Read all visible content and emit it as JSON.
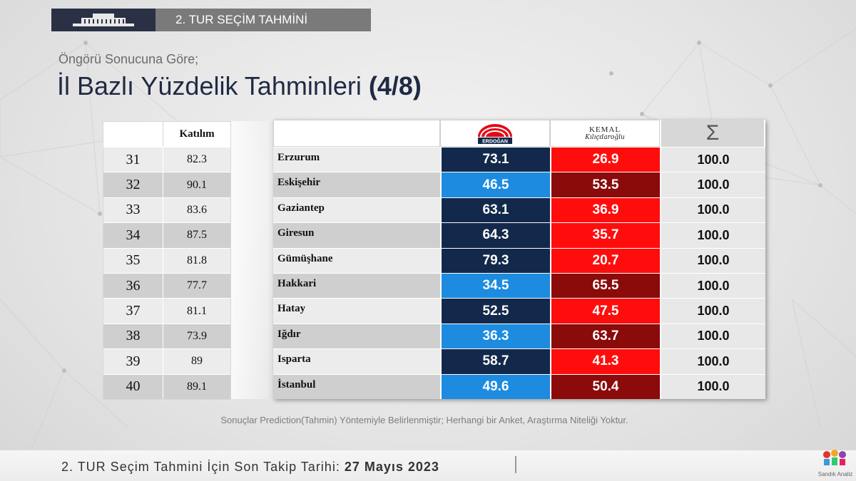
{
  "header": {
    "title": "2. TUR SEÇİM TAHMİNİ"
  },
  "subtitle": "Öngörü Sonucuna Göre;",
  "main_title": {
    "text": "İl Bazlı Yüzdelik Tahminleri",
    "part": "(4/8)"
  },
  "left_table": {
    "header": "Katılım"
  },
  "right_table": {
    "cand1_logo": "ERDOĞAN",
    "cand2_logo_top": "KEMAL",
    "cand2_logo_bottom": "Kılıçdaroğlu",
    "sum_symbol": "Σ"
  },
  "rows": [
    {
      "no": "31",
      "turnout": "82.3",
      "province": "Erzurum",
      "a": "73.1",
      "b": "26.9",
      "sum": "100.0"
    },
    {
      "no": "32",
      "turnout": "90.1",
      "province": "Eskişehir",
      "a": "46.5",
      "b": "53.5",
      "sum": "100.0"
    },
    {
      "no": "33",
      "turnout": "83.6",
      "province": "Gaziantep",
      "a": "63.1",
      "b": "36.9",
      "sum": "100.0"
    },
    {
      "no": "34",
      "turnout": "87.5",
      "province": "Giresun",
      "a": "64.3",
      "b": "35.7",
      "sum": "100.0"
    },
    {
      "no": "35",
      "turnout": "81.8",
      "province": "Gümüşhane",
      "a": "79.3",
      "b": "20.7",
      "sum": "100.0"
    },
    {
      "no": "36",
      "turnout": "77.7",
      "province": "Hakkari",
      "a": "34.5",
      "b": "65.5",
      "sum": "100.0"
    },
    {
      "no": "37",
      "turnout": "81.1",
      "province": "Hatay",
      "a": "52.5",
      "b": "47.5",
      "sum": "100.0"
    },
    {
      "no": "38",
      "turnout": "73.9",
      "province": "Iğdır",
      "a": "36.3",
      "b": "63.7",
      "sum": "100.0"
    },
    {
      "no": "39",
      "turnout": "89",
      "province": "Isparta",
      "a": "58.7",
      "b": "41.3",
      "sum": "100.0"
    },
    {
      "no": "40",
      "turnout": "89.1",
      "province": "İstanbul",
      "a": "49.6",
      "b": "50.4",
      "sum": "100.0"
    }
  ],
  "colors": {
    "a_win": "#13294b",
    "a_lose": "#1c8be0",
    "b_win": "#ff0d0d",
    "b_lose": "#8b0a0a"
  },
  "note": "Sonuçlar Prediction(Tahmin) Yöntemiyle Belirlenmiştir; Herhangi bir Anket, Araştırma Niteliği Yoktur.",
  "footer": {
    "text": "2. TUR Seçim Tahmini İçin Son Takip Tarihi:",
    "date": "27 Mayıs 2023"
  },
  "brand": "Sandık Analiz"
}
